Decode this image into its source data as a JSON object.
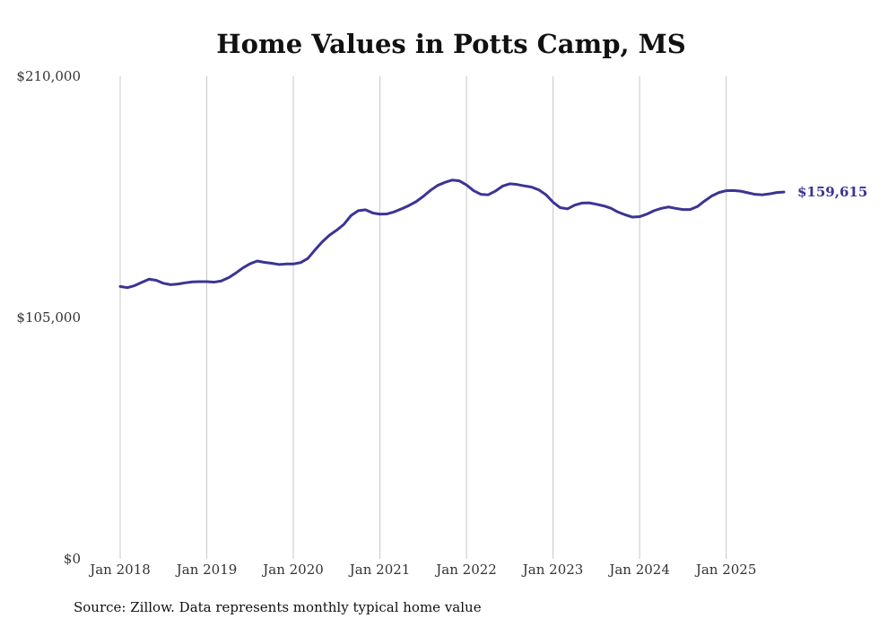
{
  "chart_data": {
    "type": "line",
    "title": "Home Values in Potts Camp, MS",
    "xlabel": "",
    "ylabel": "",
    "ylim": [
      0,
      210000
    ],
    "yticks": [
      {
        "value": 0,
        "label": "$0"
      },
      {
        "value": 105000,
        "label": "$105,000"
      },
      {
        "value": 210000,
        "label": "$210,000"
      }
    ],
    "xticks": [
      {
        "value": 2018.0,
        "label": "Jan 2018"
      },
      {
        "value": 2019.0,
        "label": "Jan 2019"
      },
      {
        "value": 2020.0,
        "label": "Jan 2020"
      },
      {
        "value": 2021.0,
        "label": "Jan 2021"
      },
      {
        "value": 2022.0,
        "label": "Jan 2022"
      },
      {
        "value": 2023.0,
        "label": "Jan 2023"
      },
      {
        "value": 2024.0,
        "label": "Jan 2024"
      },
      {
        "value": 2025.0,
        "label": "Jan 2025"
      }
    ],
    "xlim": [
      2018.0,
      2025.667
    ],
    "grid": {
      "vertical": true,
      "horizontal": false
    },
    "line_color": "#3b3494",
    "series": [
      {
        "name": "Typical home value",
        "x": [
          2018.0,
          2018.083,
          2018.167,
          2018.25,
          2018.333,
          2018.417,
          2018.5,
          2018.583,
          2018.667,
          2018.75,
          2018.833,
          2018.917,
          2019.0,
          2019.083,
          2019.167,
          2019.25,
          2019.333,
          2019.417,
          2019.5,
          2019.583,
          2019.667,
          2019.75,
          2019.833,
          2019.917,
          2020.0,
          2020.083,
          2020.167,
          2020.25,
          2020.333,
          2020.417,
          2020.5,
          2020.583,
          2020.667,
          2020.75,
          2020.833,
          2020.917,
          2021.0,
          2021.083,
          2021.167,
          2021.25,
          2021.333,
          2021.417,
          2021.5,
          2021.583,
          2021.667,
          2021.75,
          2021.833,
          2021.917,
          2022.0,
          2022.083,
          2022.167,
          2022.25,
          2022.333,
          2022.417,
          2022.5,
          2022.583,
          2022.667,
          2022.75,
          2022.833,
          2022.917,
          2023.0,
          2023.083,
          2023.167,
          2023.25,
          2023.333,
          2023.417,
          2023.5,
          2023.583,
          2023.667,
          2023.75,
          2023.833,
          2023.917,
          2024.0,
          2024.083,
          2024.167,
          2024.25,
          2024.333,
          2024.417,
          2024.5,
          2024.583,
          2024.667,
          2024.75,
          2024.833,
          2024.917,
          2025.0,
          2025.083,
          2025.167,
          2025.25,
          2025.333,
          2025.417,
          2025.5,
          2025.583,
          2025.667
        ],
        "values": [
          118500,
          118000,
          118900,
          120300,
          121700,
          121200,
          119900,
          119300,
          119600,
          120100,
          120500,
          120600,
          120600,
          120400,
          120900,
          122300,
          124300,
          126600,
          128400,
          129600,
          129000,
          128600,
          128100,
          128300,
          128300,
          128900,
          130700,
          134400,
          137900,
          140800,
          143000,
          145500,
          149400,
          151500,
          151900,
          150500,
          150000,
          150100,
          151000,
          152300,
          153700,
          155400,
          157700,
          160300,
          162500,
          163800,
          164800,
          164500,
          162700,
          160200,
          158600,
          158400,
          160000,
          162200,
          163200,
          162900,
          162300,
          161800,
          160600,
          158500,
          155200,
          152800,
          152300,
          153900,
          154800,
          154900,
          154300,
          153600,
          152600,
          150900,
          149700,
          148700,
          148900,
          150000,
          151500,
          152500,
          153100,
          152500,
          152000,
          152000,
          153300,
          155700,
          157900,
          159400,
          160200,
          160300,
          160000,
          159300,
          158600,
          158400,
          158800,
          159400,
          159615
        ]
      }
    ],
    "end_label": "$159,615"
  },
  "footer": {
    "source": "Source: Zillow. Data represents monthly typical home value"
  }
}
